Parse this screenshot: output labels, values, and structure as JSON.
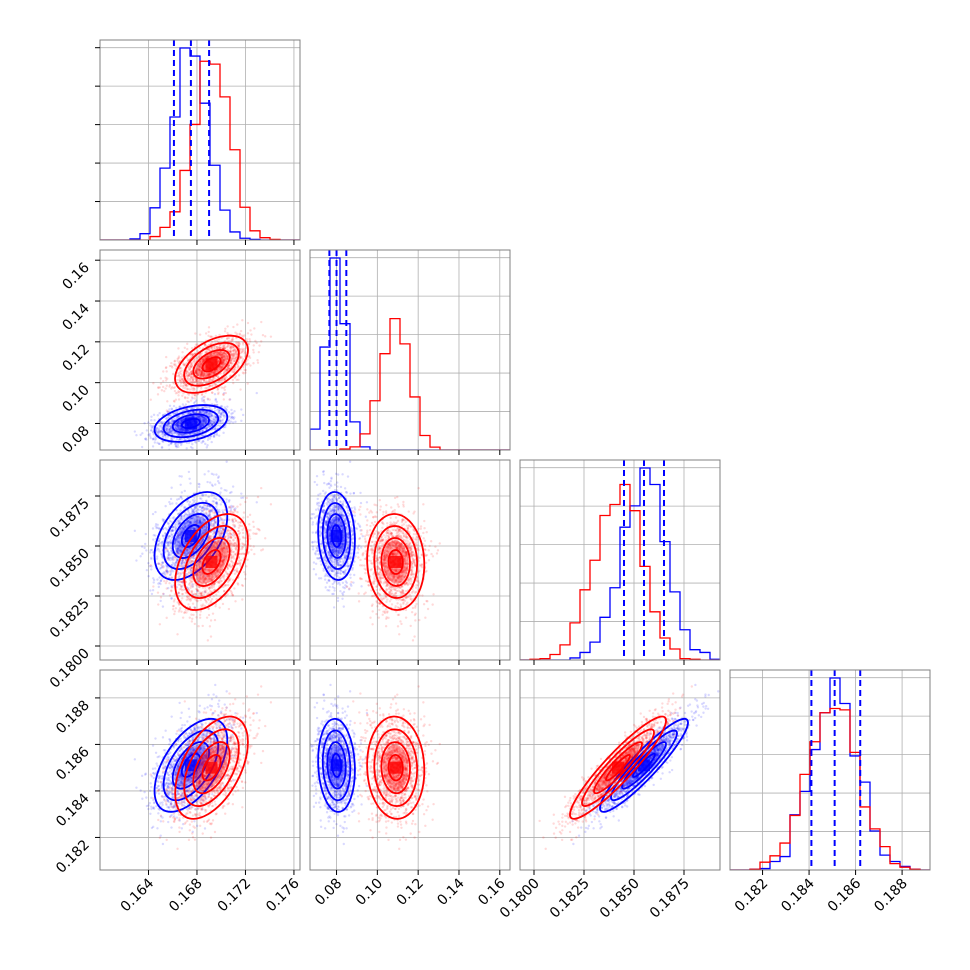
{
  "chart_data": {
    "type": "corner",
    "colors": {
      "blue": "#0000ff",
      "red": "#ff0000",
      "grid": "#b0b0b0",
      "frame": "#808080"
    },
    "parameters": [
      {
        "range": [
          0.16,
          0.1765
        ],
        "ticks": [
          0.164,
          0.168,
          0.172,
          0.176
        ],
        "tick_labels": [
          "0.164",
          "0.168",
          "0.172",
          "0.176"
        ]
      },
      {
        "range": [
          0.067,
          0.165
        ],
        "ticks": [
          0.08,
          0.1,
          0.12,
          0.14,
          0.16
        ],
        "tick_labels": [
          "0.08",
          "0.10",
          "0.12",
          "0.14",
          "0.16"
        ]
      },
      {
        "range": [
          0.1793,
          0.1893
        ],
        "ticks": [
          0.18,
          0.1825,
          0.185,
          0.1875
        ],
        "tick_labels": [
          "0.1800",
          "0.1825",
          "0.1850",
          "0.1875"
        ]
      },
      {
        "range": [
          0.1806,
          0.1892
        ],
        "ticks": [
          0.182,
          0.184,
          0.186,
          0.188
        ],
        "tick_labels": [
          "0.182",
          "0.184",
          "0.186",
          "0.188"
        ]
      }
    ],
    "samples": [
      {
        "name": "",
        "color": "#0000ff",
        "mean": [
          0.1675,
          0.08,
          0.1855,
          0.1851
        ],
        "std": [
          0.0015,
          0.0045,
          0.0011,
          0.001
        ],
        "corr": [
          [
            1,
            0.35,
            0.45,
            0.55
          ],
          [
            0.35,
            1,
            -0.1,
            -0.1
          ],
          [
            0.45,
            -0.1,
            1,
            0.92
          ],
          [
            0.55,
            -0.1,
            0.92,
            1
          ]
        ],
        "quantiles": [
          [
            0.1661,
            0.1675,
            0.169
          ],
          [
            0.0765,
            0.08,
            0.0848
          ],
          [
            0.1845,
            0.1855,
            0.1865
          ],
          [
            0.1841,
            0.1851,
            0.1862
          ]
        ]
      },
      {
        "name": "",
        "color": "#ff0000",
        "mean": [
          0.1692,
          0.109,
          0.1842,
          0.185
        ],
        "std": [
          0.0015,
          0.007,
          0.0012,
          0.0011
        ],
        "corr": [
          [
            1,
            0.5,
            0.45,
            0.5
          ],
          [
            0.5,
            1,
            -0.05,
            -0.05
          ],
          [
            0.45,
            -0.05,
            1,
            0.92
          ],
          [
            0.5,
            -0.05,
            0.92,
            1
          ]
        ],
        "quantiles": []
      }
    ],
    "contour_levels": [
      0.5,
      1.0,
      1.5,
      2.0
    ],
    "histogram_bins": 20,
    "grid": true,
    "title": "",
    "xlabel": "",
    "ylabel": ""
  }
}
